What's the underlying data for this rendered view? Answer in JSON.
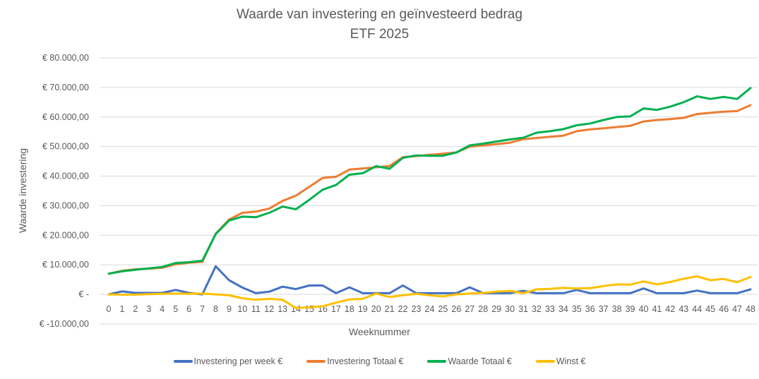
{
  "chart_data": {
    "type": "line",
    "title": "Waarde van investering en geïnvesteerd bedrag",
    "subtitle": "ETF 2025",
    "xlabel": "Weeknummer",
    "ylabel": "Waarde investering",
    "ylim": [
      -10000,
      80000
    ],
    "y_ticks": [
      80000,
      70000,
      60000,
      50000,
      40000,
      30000,
      20000,
      10000,
      0,
      -10000
    ],
    "y_tick_labels": [
      "€ 80.000,00",
      "€ 70.000,00",
      "€ 60.000,00",
      "€ 50.000,00",
      "€ 40.000,00",
      "€ 30.000,00",
      "€ 20.000,00",
      "€ 10.000,00",
      "€ -",
      "€ -10.000,00"
    ],
    "grid": true,
    "legend_position": "bottom",
    "x": [
      0,
      1,
      2,
      3,
      4,
      5,
      6,
      7,
      8,
      9,
      10,
      11,
      12,
      13,
      14,
      15,
      16,
      17,
      18,
      19,
      20,
      21,
      22,
      23,
      24,
      25,
      26,
      27,
      28,
      29,
      30,
      31,
      32,
      33,
      34,
      35,
      36,
      37,
      38,
      39,
      40,
      41,
      42,
      43,
      44,
      45,
      46,
      47,
      48
    ],
    "series": [
      {
        "name": "Investering per week €",
        "color": "#4472C4",
        "values": [
          0,
          1000,
          500,
          500,
          500,
          1500,
          500,
          0,
          9500,
          4800,
          2300,
          400,
          900,
          2600,
          1800,
          3000,
          3000,
          400,
          2400,
          400,
          400,
          400,
          3000,
          400,
          400,
          400,
          400,
          2400,
          400,
          400,
          400,
          1200,
          400,
          400,
          400,
          1500,
          400,
          400,
          400,
          400,
          2000,
          400,
          400,
          400,
          1300,
          400,
          400,
          400,
          1700
        ]
      },
      {
        "name": "Investering Totaal €",
        "color": "#ED7D31",
        "values": [
          7000,
          8000,
          8500,
          8700,
          9000,
          10200,
          10700,
          11000,
          20500,
          25300,
          27600,
          28000,
          29000,
          31600,
          33400,
          36400,
          39400,
          39800,
          42200,
          42600,
          43000,
          43400,
          46400,
          46800,
          47200,
          47600,
          48000,
          50000,
          50400,
          50800,
          51300,
          52500,
          52900,
          53300,
          53700,
          55200,
          55800,
          56200,
          56600,
          57000,
          58500,
          59000,
          59300,
          59700,
          61000,
          61400,
          61800,
          62000,
          64000
        ]
      },
      {
        "name": "Waarde Totaal €",
        "color": "#00B050",
        "values": [
          7000,
          7800,
          8300,
          8800,
          9300,
          10600,
          10900,
          11400,
          20400,
          25000,
          26300,
          26100,
          27600,
          29700,
          28800,
          32000,
          35400,
          37000,
          40500,
          41000,
          43400,
          42500,
          46200,
          47000,
          46900,
          46900,
          48000,
          50400,
          51000,
          51700,
          52400,
          53000,
          54700,
          55200,
          55900,
          57200,
          57800,
          59000,
          60000,
          60200,
          62900,
          62400,
          63500,
          65000,
          67000,
          66100,
          66800,
          66100,
          69800
        ]
      },
      {
        "name": "Winst €",
        "color": "#FFC000",
        "values": [
          0,
          -100,
          -100,
          100,
          200,
          300,
          200,
          300,
          0,
          -300,
          -1300,
          -1800,
          -1500,
          -1800,
          -4600,
          -4400,
          -4000,
          -2800,
          -1700,
          -1500,
          300,
          -900,
          -300,
          200,
          -300,
          -700,
          0,
          300,
          500,
          900,
          1200,
          400,
          1700,
          1900,
          2200,
          2000,
          2100,
          2800,
          3400,
          3300,
          4400,
          3400,
          4200,
          5300,
          6100,
          4800,
          5200,
          4100,
          5900
        ]
      }
    ]
  },
  "title": {
    "line1": "Waarde van investering en geïnvesteerd bedrag",
    "line2": "ETF 2025"
  },
  "axes": {
    "xlabel": "Weeknummer",
    "ylabel": "Waarde investering"
  },
  "legend": [
    {
      "label": "Investering per week €",
      "color": "#4472C4"
    },
    {
      "label": "Investering Totaal €",
      "color": "#ED7D31"
    },
    {
      "label": "Waarde Totaal €",
      "color": "#00B050"
    },
    {
      "label": "Winst €",
      "color": "#FFC000"
    }
  ]
}
